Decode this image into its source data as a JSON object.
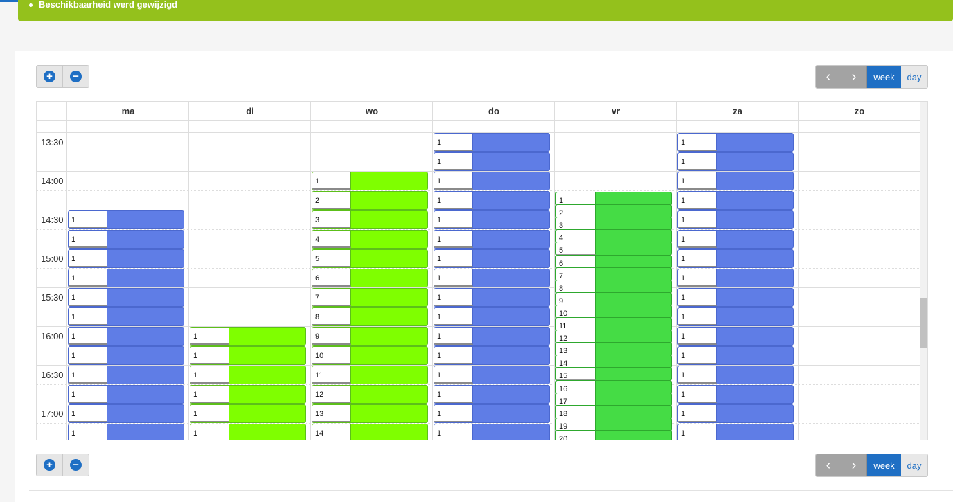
{
  "alert": {
    "message": "Beschikbaarheid werd gewijzigd"
  },
  "toolbar": {
    "zoom_in": "+",
    "zoom_out": "−",
    "prev": "‹",
    "next": "›",
    "week": "week",
    "day": "day"
  },
  "colors": {
    "accent": "#1f6fc4",
    "alert_green": "#94c11c",
    "event_blue": "#5f7de6",
    "event_green": "#7fff00",
    "event_mint": "#45dc45"
  },
  "icons": {
    "zoom_in": "plus-circle-icon",
    "zoom_out": "minus-circle-icon",
    "prev": "chevron-left-icon",
    "next": "chevron-right-icon"
  },
  "calendar": {
    "days": [
      "ma",
      "di",
      "wo",
      "do",
      "vr",
      "za",
      "zo"
    ],
    "time_labels": [
      "13:30",
      "14:00",
      "14:30",
      "15:00",
      "15:30",
      "16:00",
      "16:30",
      "17:00"
    ],
    "columns": [
      {
        "day": "ma",
        "color": "blue",
        "events": [
          {
            "slot": 4,
            "label": "1"
          },
          {
            "slot": 5,
            "label": "1"
          },
          {
            "slot": 6,
            "label": "1"
          },
          {
            "slot": 7,
            "label": "1"
          },
          {
            "slot": 8,
            "label": "1"
          },
          {
            "slot": 9,
            "label": "1"
          },
          {
            "slot": 10,
            "label": "1"
          },
          {
            "slot": 11,
            "label": "1"
          },
          {
            "slot": 12,
            "label": "1"
          },
          {
            "slot": 13,
            "label": "1"
          },
          {
            "slot": 14,
            "label": "1"
          },
          {
            "slot": 15,
            "label": "1"
          }
        ]
      },
      {
        "day": "di",
        "color": "green",
        "events": [
          {
            "slot": 10,
            "label": "1"
          },
          {
            "slot": 11,
            "label": "1"
          },
          {
            "slot": 12,
            "label": "1"
          },
          {
            "slot": 13,
            "label": "1"
          },
          {
            "slot": 14,
            "label": "1"
          },
          {
            "slot": 15,
            "label": "1"
          }
        ]
      },
      {
        "day": "wo",
        "color": "green",
        "events": [
          {
            "slot": 2,
            "label": "1"
          },
          {
            "slot": 3,
            "label": "2"
          },
          {
            "slot": 4,
            "label": "3"
          },
          {
            "slot": 5,
            "label": "4"
          },
          {
            "slot": 6,
            "label": "5"
          },
          {
            "slot": 7,
            "label": "6"
          },
          {
            "slot": 8,
            "label": "7"
          },
          {
            "slot": 9,
            "label": "8"
          },
          {
            "slot": 10,
            "label": "9"
          },
          {
            "slot": 11,
            "label": "10"
          },
          {
            "slot": 12,
            "label": "11"
          },
          {
            "slot": 13,
            "label": "12"
          },
          {
            "slot": 14,
            "label": "13"
          },
          {
            "slot": 15,
            "label": "14"
          }
        ]
      },
      {
        "day": "do",
        "color": "blue",
        "events": [
          {
            "slot": 0,
            "label": "1"
          },
          {
            "slot": 1,
            "label": "1"
          },
          {
            "slot": 2,
            "label": "1"
          },
          {
            "slot": 3,
            "label": "1"
          },
          {
            "slot": 4,
            "label": "1"
          },
          {
            "slot": 5,
            "label": "1"
          },
          {
            "slot": 6,
            "label": "1"
          },
          {
            "slot": 7,
            "label": "1"
          },
          {
            "slot": 8,
            "label": "1"
          },
          {
            "slot": 9,
            "label": "1"
          },
          {
            "slot": 10,
            "label": "1"
          },
          {
            "slot": 11,
            "label": "1"
          },
          {
            "slot": 12,
            "label": "1"
          },
          {
            "slot": 13,
            "label": "1"
          },
          {
            "slot": 14,
            "label": "1"
          },
          {
            "slot": 15,
            "label": "1"
          }
        ]
      },
      {
        "day": "vr",
        "color": "mint",
        "dense": true,
        "events": [
          {
            "label": "1"
          },
          {
            "label": "2"
          },
          {
            "label": "3"
          },
          {
            "label": "4"
          },
          {
            "label": "5"
          },
          {
            "label": "6"
          },
          {
            "label": "7"
          },
          {
            "label": "8"
          },
          {
            "label": "9"
          },
          {
            "label": "10"
          },
          {
            "label": "11"
          },
          {
            "label": "12"
          },
          {
            "label": "13"
          },
          {
            "label": "14"
          },
          {
            "label": "15"
          },
          {
            "label": "16"
          },
          {
            "label": "17"
          },
          {
            "label": "18"
          },
          {
            "label": "19"
          },
          {
            "label": "20"
          }
        ]
      },
      {
        "day": "za",
        "color": "blue",
        "events": [
          {
            "slot": 0,
            "label": "1"
          },
          {
            "slot": 1,
            "label": "1"
          },
          {
            "slot": 2,
            "label": "1"
          },
          {
            "slot": 3,
            "label": "1"
          },
          {
            "slot": 4,
            "label": "1"
          },
          {
            "slot": 5,
            "label": "1"
          },
          {
            "slot": 6,
            "label": "1"
          },
          {
            "slot": 7,
            "label": "1"
          },
          {
            "slot": 8,
            "label": "1"
          },
          {
            "slot": 9,
            "label": "1"
          },
          {
            "slot": 10,
            "label": "1"
          },
          {
            "slot": 11,
            "label": "1"
          },
          {
            "slot": 12,
            "label": "1"
          },
          {
            "slot": 13,
            "label": "1"
          },
          {
            "slot": 14,
            "label": "1"
          },
          {
            "slot": 15,
            "label": "1"
          }
        ]
      },
      {
        "day": "zo",
        "color": "blue",
        "events": []
      }
    ]
  }
}
